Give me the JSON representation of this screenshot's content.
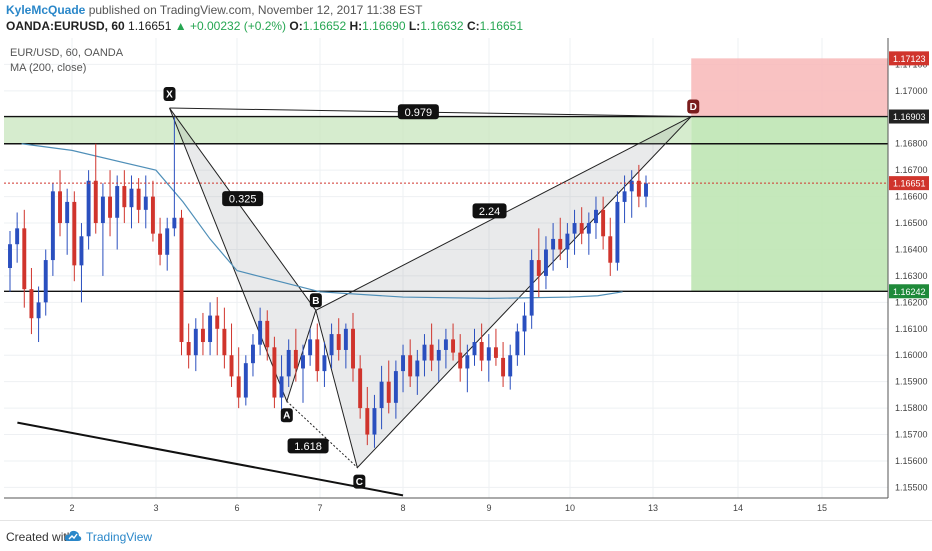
{
  "header": {
    "author": "KyleMcQuade",
    "published": "published on TradingView.com, November 12, 2017 11:38 EST",
    "symbol": "OANDA:EURUSD, 60",
    "last": "1.16651",
    "change": "▲ +0.00232 (+0.2%)",
    "o_label": "O:",
    "o_value": "1.16652",
    "h_label": "H:",
    "h_value": "1.16690",
    "l_label": "L:",
    "l_value": "1.16632",
    "c_label": "C:",
    "c_value": "1.16651"
  },
  "legend": {
    "symbol": "EUR/USD, 60, OANDA",
    "indicator": "MA (200, close)"
  },
  "footer": {
    "created": "Created with",
    "brand": "TradingView"
  },
  "colors": {
    "up": "#2a4fbf",
    "down": "#d0342c",
    "ma": "#4f8fb8",
    "green_zone": "#c8e6bd",
    "red_zone": "#f8b7b7",
    "price_line": "#d0342c"
  },
  "chart_data": {
    "type": "candlestick",
    "symbol": "EUR/USD",
    "timeframe": "60",
    "x_tick_labels": [
      "2",
      "3",
      "6",
      "7",
      "8",
      "9",
      "10",
      "13",
      "14",
      "15"
    ],
    "y_tick_labels": [
      "1.17100",
      "1.17000",
      "1.16900",
      "1.16800",
      "1.16700",
      "1.16600",
      "1.16500",
      "1.16400",
      "1.16300",
      "1.16200",
      "1.16100",
      "1.16000",
      "1.15900",
      "1.15800",
      "1.15700",
      "1.15600",
      "1.15500"
    ],
    "ylim": [
      1.1546,
      1.172
    ],
    "price_badges": [
      {
        "text": "1.17123",
        "value": 1.17123,
        "color": "#d0342c"
      },
      {
        "text": "1.16903",
        "value": 1.16903,
        "color": "#222222"
      },
      {
        "text": "1.16651",
        "value": 1.16651,
        "color": "#d0342c"
      },
      {
        "text": "1.16242",
        "value": 1.16242,
        "color": "#1f8a3a"
      }
    ],
    "harmonic_pattern": {
      "points": [
        {
          "label": "X",
          "index": 3.5,
          "price": 1.16935
        },
        {
          "label": "A",
          "index": 6.6,
          "price": 1.15826
        },
        {
          "label": "B",
          "index": 6.95,
          "price": 1.1617
        },
        {
          "label": "C",
          "index": 7.45,
          "price": 1.15575
        },
        {
          "label": "D",
          "index": 13.45,
          "price": 1.16903
        }
      ],
      "ratios": [
        {
          "label": "0.325",
          "leg": "XB"
        },
        {
          "label": "1.618",
          "leg": "AC"
        },
        {
          "label": "2.24",
          "leg": "BD"
        },
        {
          "label": "0.979",
          "leg": "XD"
        }
      ]
    },
    "zones": {
      "target_zone": [
        1.168,
        1.16903
      ],
      "stop_zone": [
        1.16903,
        1.17123
      ],
      "profit_zone": [
        1.16242,
        1.16903
      ]
    },
    "horizontal_lines": [
      1.16903,
      1.168,
      1.16242
    ],
    "trendline": {
      "from": {
        "index": 1.35,
        "price": 1.15745
      },
      "to": {
        "index": 8.0,
        "price": 1.1547
      }
    },
    "ma200": [
      {
        "index": 1.4,
        "price": 1.168
      },
      {
        "index": 2.0,
        "price": 1.16775
      },
      {
        "index": 3.0,
        "price": 1.167
      },
      {
        "index": 4.0,
        "price": 1.1658
      },
      {
        "index": 5.0,
        "price": 1.1644
      },
      {
        "index": 6.0,
        "price": 1.1632
      },
      {
        "index": 7.0,
        "price": 1.1624
      },
      {
        "index": 8.0,
        "price": 1.1622
      },
      {
        "index": 9.0,
        "price": 1.16215
      },
      {
        "index": 10.0,
        "price": 1.1622
      },
      {
        "index": 11.0,
        "price": 1.16225
      },
      {
        "index": 11.9,
        "price": 1.1624
      }
    ],
    "candles_ohlc": [
      [
        1.1633,
        1.1647,
        1.1624,
        1.1642
      ],
      [
        1.1642,
        1.1654,
        1.1635,
        1.1648
      ],
      [
        1.1648,
        1.1655,
        1.1618,
        1.1625
      ],
      [
        1.1625,
        1.1633,
        1.1608,
        1.1614
      ],
      [
        1.1614,
        1.1626,
        1.1605,
        1.162
      ],
      [
        1.162,
        1.164,
        1.1615,
        1.1636
      ],
      [
        1.1636,
        1.1665,
        1.163,
        1.1662
      ],
      [
        1.1662,
        1.167,
        1.1645,
        1.165
      ],
      [
        1.165,
        1.1663,
        1.1638,
        1.1658
      ],
      [
        1.1658,
        1.1662,
        1.1628,
        1.1634
      ],
      [
        1.1634,
        1.165,
        1.162,
        1.1645
      ],
      [
        1.1645,
        1.167,
        1.164,
        1.1666
      ],
      [
        1.1666,
        1.168,
        1.1646,
        1.165
      ],
      [
        1.165,
        1.1665,
        1.163,
        1.166
      ],
      [
        1.166,
        1.167,
        1.1645,
        1.1652
      ],
      [
        1.1652,
        1.1668,
        1.164,
        1.1664
      ],
      [
        1.1664,
        1.167,
        1.165,
        1.1656
      ],
      [
        1.1656,
        1.1668,
        1.1648,
        1.1663
      ],
      [
        1.1663,
        1.1667,
        1.165,
        1.1655
      ],
      [
        1.1655,
        1.1668,
        1.1648,
        1.166
      ],
      [
        1.166,
        1.1666,
        1.1643,
        1.1646
      ],
      [
        1.1646,
        1.1652,
        1.1634,
        1.1638
      ],
      [
        1.1638,
        1.1652,
        1.1632,
        1.1648
      ],
      [
        1.1648,
        1.169,
        1.1645,
        1.1652
      ],
      [
        1.1652,
        1.1655,
        1.16,
        1.1605
      ],
      [
        1.1605,
        1.1612,
        1.1595,
        1.16
      ],
      [
        1.16,
        1.1614,
        1.1594,
        1.161
      ],
      [
        1.161,
        1.1616,
        1.16,
        1.1605
      ],
      [
        1.1605,
        1.162,
        1.16,
        1.1615
      ],
      [
        1.1615,
        1.1622,
        1.16,
        1.161
      ],
      [
        1.161,
        1.1618,
        1.1595,
        1.16
      ],
      [
        1.16,
        1.1612,
        1.1588,
        1.1592
      ],
      [
        1.1592,
        1.1603,
        1.158,
        1.1584
      ],
      [
        1.1584,
        1.16,
        1.1581,
        1.1597
      ],
      [
        1.1597,
        1.1608,
        1.1592,
        1.1604
      ],
      [
        1.1604,
        1.1618,
        1.16,
        1.1613
      ],
      [
        1.1613,
        1.1617,
        1.1598,
        1.1603
      ],
      [
        1.1603,
        1.1607,
        1.158,
        1.1584
      ],
      [
        1.1584,
        1.16,
        1.1575,
        1.1592
      ],
      [
        1.1592,
        1.1606,
        1.1588,
        1.1602
      ],
      [
        1.1602,
        1.161,
        1.159,
        1.1595
      ],
      [
        1.1595,
        1.1604,
        1.1582,
        1.16
      ],
      [
        1.16,
        1.161,
        1.1596,
        1.1606
      ],
      [
        1.1606,
        1.1612,
        1.159,
        1.1594
      ],
      [
        1.1594,
        1.1605,
        1.1588,
        1.16
      ],
      [
        1.16,
        1.1612,
        1.1595,
        1.1608
      ],
      [
        1.1608,
        1.1614,
        1.1598,
        1.1602
      ],
      [
        1.1602,
        1.1612,
        1.1595,
        1.161
      ],
      [
        1.161,
        1.1616,
        1.159,
        1.1595
      ],
      [
        1.1595,
        1.16,
        1.1576,
        1.158
      ],
      [
        1.158,
        1.1588,
        1.1566,
        1.157
      ],
      [
        1.157,
        1.1585,
        1.1565,
        1.158
      ],
      [
        1.158,
        1.1596,
        1.1572,
        1.159
      ],
      [
        1.159,
        1.1598,
        1.1578,
        1.1582
      ],
      [
        1.1582,
        1.1598,
        1.1576,
        1.1594
      ],
      [
        1.1594,
        1.1604,
        1.1586,
        1.16
      ],
      [
        1.16,
        1.1606,
        1.1588,
        1.1592
      ],
      [
        1.1592,
        1.1602,
        1.1585,
        1.1598
      ],
      [
        1.1598,
        1.1608,
        1.1592,
        1.1604
      ],
      [
        1.1604,
        1.1612,
        1.1594,
        1.1598
      ],
      [
        1.1598,
        1.1606,
        1.159,
        1.1602
      ],
      [
        1.1602,
        1.161,
        1.1595,
        1.1606
      ],
      [
        1.1606,
        1.1612,
        1.1598,
        1.1601
      ],
      [
        1.1601,
        1.1608,
        1.159,
        1.1595
      ],
      [
        1.1595,
        1.1604,
        1.1586,
        1.16
      ],
      [
        1.16,
        1.161,
        1.1596,
        1.1605
      ],
      [
        1.1605,
        1.1612,
        1.1594,
        1.1598
      ],
      [
        1.1598,
        1.1608,
        1.159,
        1.1603
      ],
      [
        1.1603,
        1.161,
        1.1596,
        1.1599
      ],
      [
        1.1599,
        1.1605,
        1.1588,
        1.1592
      ],
      [
        1.1592,
        1.1604,
        1.1587,
        1.16
      ],
      [
        1.16,
        1.1612,
        1.1596,
        1.1609
      ],
      [
        1.1609,
        1.162,
        1.16,
        1.1615
      ],
      [
        1.1615,
        1.164,
        1.161,
        1.1636
      ],
      [
        1.1636,
        1.1648,
        1.1622,
        1.163
      ],
      [
        1.163,
        1.1645,
        1.1625,
        1.164
      ],
      [
        1.164,
        1.165,
        1.1632,
        1.1644
      ],
      [
        1.1644,
        1.1652,
        1.1636,
        1.164
      ],
      [
        1.164,
        1.165,
        1.1633,
        1.1646
      ],
      [
        1.1646,
        1.1655,
        1.1638,
        1.165
      ],
      [
        1.165,
        1.1656,
        1.1642,
        1.1646
      ],
      [
        1.1646,
        1.1654,
        1.1638,
        1.165
      ],
      [
        1.165,
        1.166,
        1.1644,
        1.1655
      ],
      [
        1.1655,
        1.166,
        1.164,
        1.1645
      ],
      [
        1.1645,
        1.1652,
        1.163,
        1.1635
      ],
      [
        1.1635,
        1.1662,
        1.1632,
        1.1658
      ],
      [
        1.1658,
        1.1668,
        1.165,
        1.1662
      ],
      [
        1.1662,
        1.167,
        1.1652,
        1.1666
      ],
      [
        1.1666,
        1.1672,
        1.1656,
        1.166
      ],
      [
        1.166,
        1.1668,
        1.1656,
        1.1665
      ]
    ]
  }
}
